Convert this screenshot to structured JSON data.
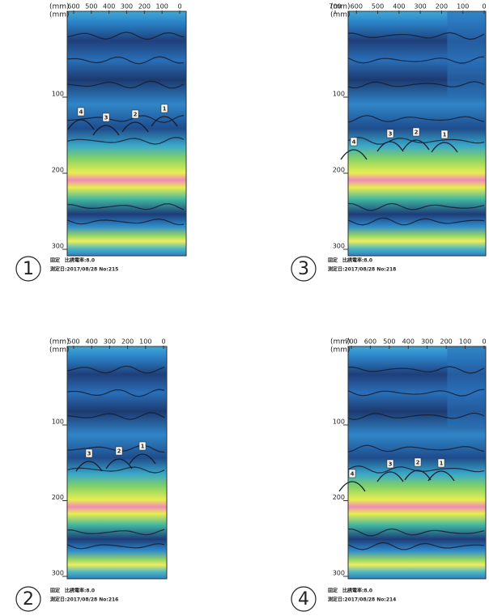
{
  "panels": [
    {
      "number": "1",
      "unit_top": "(mm)",
      "unit_left": "(mm)",
      "xticks": [
        600,
        500,
        400,
        300,
        200,
        100,
        0
      ],
      "yticks": [
        100,
        200,
        300
      ],
      "markers": [
        "4",
        "3",
        "2",
        "1"
      ],
      "caption_line1": "固定　比誘電率:8.0",
      "caption_line2": "測定日:2017/08/28 No:215"
    },
    {
      "number": "3",
      "unit_top": "(mm)",
      "unit_left": "(mm)",
      "xticks": [
        700,
        600,
        500,
        400,
        300,
        200,
        100,
        0
      ],
      "yticks": [
        100,
        200,
        300
      ],
      "markers": [
        "4",
        "3",
        "2",
        "1"
      ],
      "caption_line1": "固定　比誘電率:8.0",
      "caption_line2": "測定日:2017/08/28 No:218"
    },
    {
      "number": "2",
      "unit_top": "(mm)",
      "unit_left": "(mm)",
      "xticks": [
        500,
        400,
        300,
        200,
        100,
        0
      ],
      "yticks": [
        100,
        200,
        300
      ],
      "markers": [
        "3",
        "2",
        "1"
      ],
      "caption_line1": "固定　比誘電率:8.0",
      "caption_line2": "測定日:2017/08/28 No:216"
    },
    {
      "number": "4",
      "unit_top": "(mm)",
      "unit_left": "(mm)",
      "xticks": [
        700,
        600,
        500,
        400,
        300,
        200,
        100,
        0
      ],
      "yticks": [
        100,
        200,
        300
      ],
      "markers": [
        "4",
        "3",
        "2",
        "1"
      ],
      "caption_line1": "固定　比誘電率:8.0",
      "caption_line2": "測定日:2017/08/28 No:214"
    }
  ]
}
